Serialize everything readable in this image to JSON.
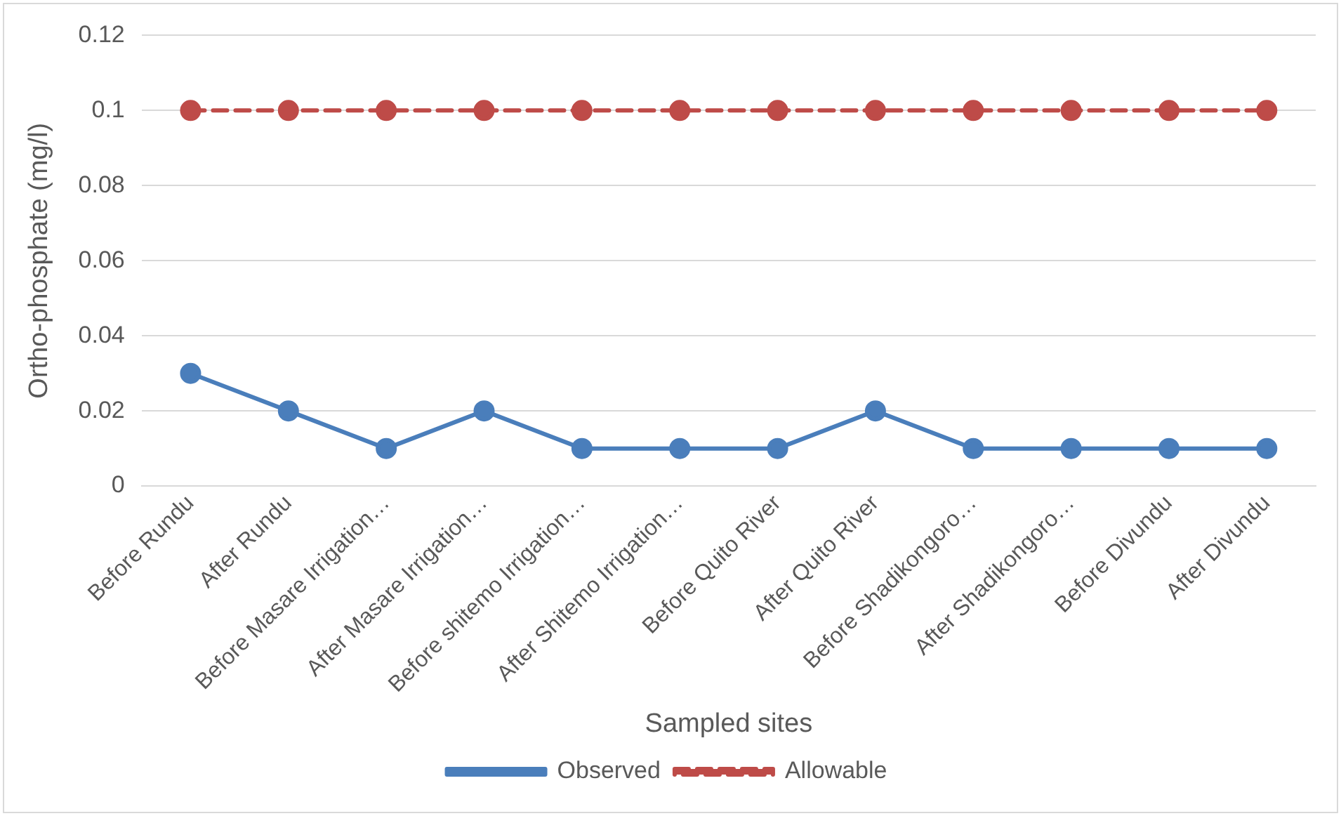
{
  "chart_data": {
    "type": "line",
    "xlabel": "Sampled sites",
    "ylabel": "Ortho-phosphate (mg/l)",
    "categories": [
      "Before Rundu",
      "After Rundu",
      "Before Masare Irrigation…",
      "After Masare Irrigation…",
      "Before shitemo Irrigation…",
      "After Shitemo Irrigation…",
      "Before Quito River",
      "After Quito River",
      "Before Shadikongoro…",
      "After Shadikongoro…",
      "Before Divundu",
      "After Divundu"
    ],
    "series": [
      {
        "name": "Observed",
        "color": "#4a7ebb",
        "line_style": "solid",
        "values": [
          0.03,
          0.02,
          0.01,
          0.02,
          0.01,
          0.01,
          0.01,
          0.02,
          0.01,
          0.01,
          0.01,
          0.01
        ]
      },
      {
        "name": "Allowable",
        "color": "#be4b48",
        "line_style": "dashed",
        "values": [
          0.1,
          0.1,
          0.1,
          0.1,
          0.1,
          0.1,
          0.1,
          0.1,
          0.1,
          0.1,
          0.1,
          0.1
        ]
      }
    ],
    "ylim": [
      0,
      0.12
    ],
    "yticks": [
      0,
      0.02,
      0.04,
      0.06,
      0.08,
      0.1,
      0.12
    ],
    "grid": "y",
    "legend": "bottom",
    "marker": "circle"
  }
}
